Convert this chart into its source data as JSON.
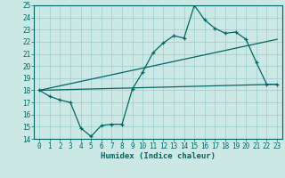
{
  "title": "",
  "xlabel": "Humidex (Indice chaleur)",
  "bg_color": "#cce8e4",
  "grid_color": "#99cccc",
  "line_color": "#006666",
  "xlim": [
    -0.5,
    23.5
  ],
  "ylim": [
    14,
    25
  ],
  "xticks": [
    0,
    1,
    2,
    3,
    4,
    5,
    6,
    7,
    8,
    9,
    10,
    11,
    12,
    13,
    14,
    15,
    16,
    17,
    18,
    19,
    20,
    21,
    22,
    23
  ],
  "yticks": [
    14,
    15,
    16,
    17,
    18,
    19,
    20,
    21,
    22,
    23,
    24,
    25
  ],
  "series1_x": [
    0,
    1,
    2,
    3,
    4,
    5,
    6,
    7,
    8,
    9,
    10,
    11,
    12,
    13,
    14,
    15,
    16,
    17,
    18,
    19,
    20,
    21,
    22,
    23
  ],
  "series1_y": [
    18.0,
    17.5,
    17.2,
    17.0,
    14.9,
    14.2,
    15.1,
    15.2,
    15.2,
    18.1,
    19.5,
    21.1,
    21.9,
    22.5,
    22.3,
    25.0,
    23.8,
    23.1,
    22.7,
    22.8,
    22.2,
    20.3,
    18.5,
    18.5
  ],
  "series2_x": [
    0,
    23
  ],
  "series2_y": [
    18.0,
    22.2
  ],
  "series3_x": [
    0,
    23
  ],
  "series3_y": [
    18.0,
    18.5
  ],
  "tick_fontsize": 5.5,
  "xlabel_fontsize": 6.5
}
